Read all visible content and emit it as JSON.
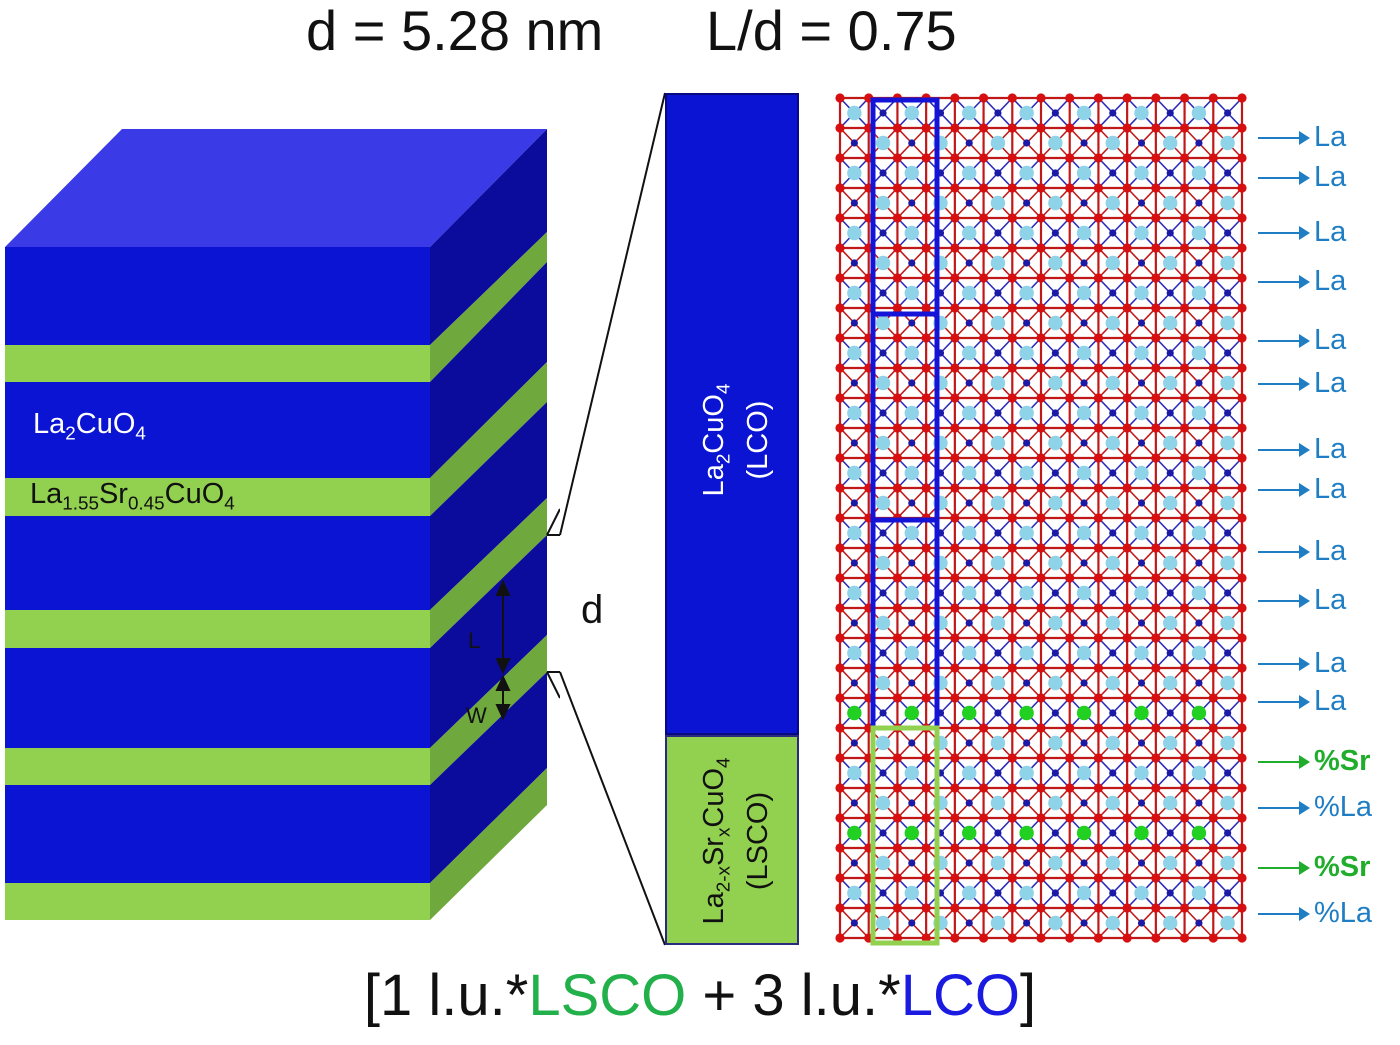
{
  "header": {
    "d_label": "d = 5.28 nm",
    "ratio_label": "L/d = 0.75"
  },
  "stack": {
    "lco_label": {
      "a": "La",
      "a_sub": "2",
      "b": "CuO",
      "b_sub": "4"
    },
    "lsco_label": {
      "a": "La",
      "a_sub": "1.55",
      "b": "Sr",
      "b_sub": "0.45",
      "c": "CuO",
      "c_sub": "4"
    },
    "dim_d": "d",
    "dim_L": "L",
    "dim_W": "W"
  },
  "zoom": {
    "lco": {
      "a": "La",
      "a_sub": "2",
      "b": "CuO",
      "b_sub": "4",
      "abbr": "(LCO)"
    },
    "lsco": {
      "a": "La",
      "a_sub": "2-x",
      "b": "Sr",
      "b_sub": "x",
      "c": "CuO",
      "c_sub": "4",
      "abbr": "(LSCO)"
    }
  },
  "side_labels": [
    "La",
    "La",
    "La",
    "La",
    "La",
    "La",
    "La",
    "La",
    "La",
    "La",
    "La",
    "La",
    "%Sr",
    "%La",
    "%Sr",
    "%La"
  ],
  "formula": {
    "open": "[1 l.u.*",
    "lsco": "LSCO",
    "mid": " + 3 l.u.*",
    "lco": "LCO",
    "close": "]"
  },
  "colors": {
    "lco": "#0a14d2",
    "lsco": "#92d050",
    "atom_la": "#8fd3e8",
    "atom_o": "#d61010",
    "atom_cu": "#1a1aa6",
    "atom_sr": "#22d022",
    "label_blue": "#1f7dc4",
    "label_green": "#1fad2b"
  }
}
